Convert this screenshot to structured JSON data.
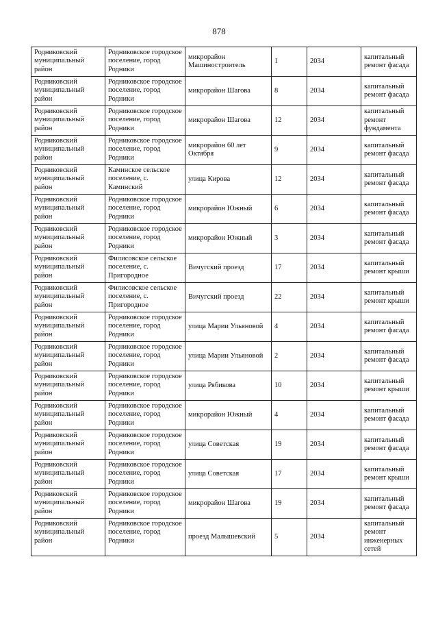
{
  "page_number": "878",
  "rows": [
    {
      "district": "Родниковский муниципальный район",
      "settlement": "Родниковское городское поселение, город Родники",
      "street": "микрорайон Машиностроитель",
      "house": "1",
      "year": "2034",
      "work": "капитальный ремонт фасада"
    },
    {
      "district": "Родниковский муниципальный район",
      "settlement": "Родниковское городское поселение, город Родники",
      "street": "микрорайон Шагова",
      "house": "8",
      "year": "2034",
      "work": "капитальный ремонт фасада"
    },
    {
      "district": "Родниковский муниципальный район",
      "settlement": "Родниковское городское поселение, город Родники",
      "street": "микрорайон Шагова",
      "house": "12",
      "year": "2034",
      "work": "капитальный ремонт фундамента"
    },
    {
      "district": "Родниковский муниципальный район",
      "settlement": "Родниковское городское поселение, город Родники",
      "street": "микрорайон 60 лет Октября",
      "house": "9",
      "year": "2034",
      "work": "капитальный ремонт фасада"
    },
    {
      "district": "Родниковский муниципальный район",
      "settlement": "Каминское сельское поселение, с. Каминский",
      "street": "улица Кирова",
      "house": "12",
      "year": "2034",
      "work": "капитальный ремонт фасада"
    },
    {
      "district": "Родниковский муниципальный район",
      "settlement": "Родниковское городское поселение, город Родники",
      "street": "микрорайон Южный",
      "house": "6",
      "year": "2034",
      "work": "капитальный ремонт фасада"
    },
    {
      "district": "Родниковский муниципальный район",
      "settlement": "Родниковское городское поселение, город Родники",
      "street": "микрорайон Южный",
      "house": "3",
      "year": "2034",
      "work": "капитальный ремонт фасада"
    },
    {
      "district": "Родниковский муниципальный район",
      "settlement": "Филисовское сельское поселение, с. Пригородное",
      "street": "Вичугский проезд",
      "house": "17",
      "year": "2034",
      "work": "капитальный ремонт крыши"
    },
    {
      "district": "Родниковский муниципальный район",
      "settlement": "Филисовское сельское поселение, с. Пригородное",
      "street": "Вичугский проезд",
      "house": "22",
      "year": "2034",
      "work": "капитальный ремонт крыши"
    },
    {
      "district": "Родниковский муниципальный район",
      "settlement": "Родниковское городское поселение, город Родники",
      "street": "улица Марии Ульяновой",
      "house": "4",
      "year": "2034",
      "work": "капитальный ремонт фасада"
    },
    {
      "district": "Родниковский муниципальный район",
      "settlement": "Родниковское городское поселение, город Родники",
      "street": "улица Марии Ульяновой",
      "house": "2",
      "year": "2034",
      "work": "капитальный ремонт фасада"
    },
    {
      "district": "Родниковский муниципальный район",
      "settlement": "Родниковское городское поселение, город Родники",
      "street": "улица Рябикова",
      "house": "10",
      "year": "2034",
      "work": "капитальный ремонт крыши"
    },
    {
      "district": "Родниковский муниципальный район",
      "settlement": "Родниковское городское поселение, город Родники",
      "street": "микрорайон Южный",
      "house": "4",
      "year": "2034",
      "work": "капитальный ремонт фасада"
    },
    {
      "district": "Родниковский муниципальный район",
      "settlement": "Родниковское городское поселение, город Родники",
      "street": "улица Советская",
      "house": "19",
      "year": "2034",
      "work": "капитальный ремонт фасада"
    },
    {
      "district": "Родниковский муниципальный район",
      "settlement": "Родниковское городское поселение, город Родники",
      "street": "улица Советская",
      "house": "17",
      "year": "2034",
      "work": "капитальный ремонт крыши"
    },
    {
      "district": "Родниковский муниципальный район",
      "settlement": "Родниковское городское поселение, город Родники",
      "street": "микрорайон Шагова",
      "house": "19",
      "year": "2034",
      "work": "капитальный ремонт фасада"
    },
    {
      "district": "Родниковский муниципальный район",
      "settlement": "Родниковское городское поселение, город Родники",
      "street": "проезд Малышевский",
      "house": "5",
      "year": "2034",
      "work": "капитальный ремонт инженерных сетей"
    }
  ]
}
